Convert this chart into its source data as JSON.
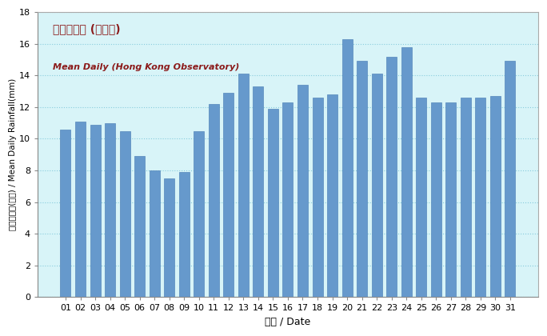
{
  "categories": [
    "01",
    "02",
    "03",
    "04",
    "05",
    "06",
    "07",
    "08",
    "09",
    "10",
    "11",
    "12",
    "13",
    "14",
    "15",
    "16",
    "17",
    "18",
    "19",
    "20",
    "21",
    "22",
    "23",
    "24",
    "25",
    "26",
    "27",
    "28",
    "29",
    "30",
    "31"
  ],
  "values": [
    10.6,
    11.1,
    10.9,
    11.0,
    10.5,
    8.9,
    8.0,
    7.5,
    7.9,
    10.5,
    12.2,
    12.9,
    14.1,
    13.3,
    11.9,
    12.3,
    13.4,
    12.6,
    12.8,
    16.3,
    14.9,
    14.1,
    15.2,
    15.8,
    12.6,
    12.3,
    12.3,
    12.6,
    12.6,
    12.7,
    14.9
  ],
  "bar_color": "#6699CC",
  "bar_edge_color": "#5588BB",
  "background_color": "#D8F4F8",
  "fig_background": "#FFFFFF",
  "title_zh": "平均日雨量 (天文台)",
  "title_en": "Mean Daily (Hong Kong Observatory)",
  "xlabel": "日期 / Date",
  "ylabel_line1": "平均日雨量(毫米)",
  "ylabel_line2": "Mean Daily Rainfall(mm)",
  "ylim": [
    0,
    18
  ],
  "yticks": [
    0,
    2,
    4,
    6,
    8,
    10,
    12,
    14,
    16,
    18
  ],
  "grid_color": "#88CCDD",
  "title_zh_color": "#8B1A1A",
  "title_en_color": "#8B1A1A",
  "tick_label_fontsize": 8,
  "xlabel_fontsize": 9,
  "ylabel_fontsize": 7.5
}
